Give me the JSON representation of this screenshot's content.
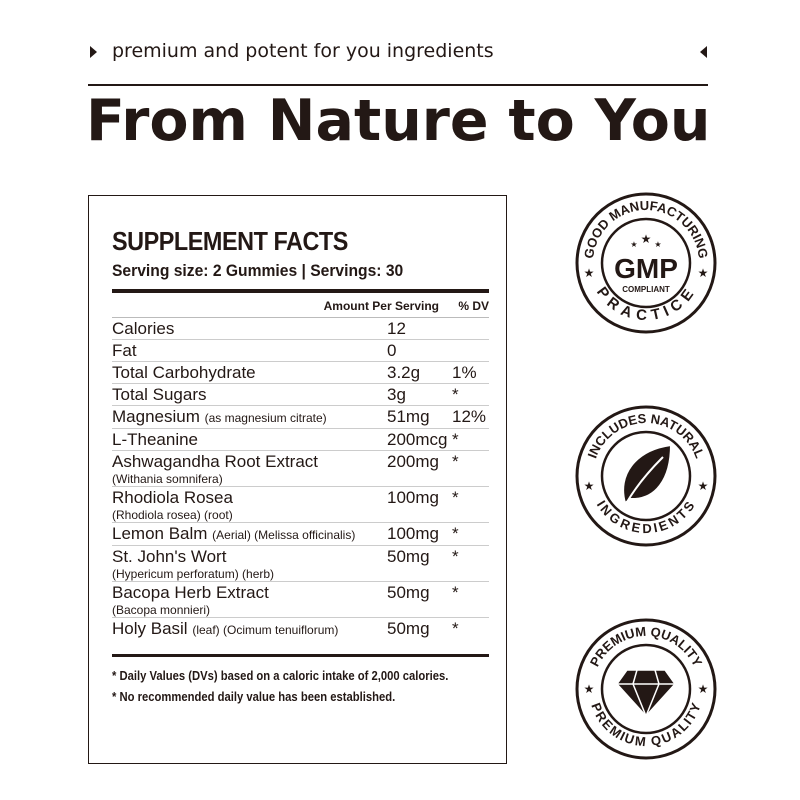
{
  "header": {
    "tagline": "premium and potent for you ingredients",
    "title": "From Nature to You"
  },
  "facts": {
    "title": "SUPPLEMENT FACTS",
    "serving": "Serving size: 2 Gummies  |  Servings: 30",
    "col_amount": "Amount Per Serving",
    "col_dv": "% DV",
    "rows": [
      {
        "name": "Calories",
        "note": "",
        "sub": "",
        "amount": "12",
        "dv": ""
      },
      {
        "name": "Fat",
        "note": "",
        "sub": "",
        "amount": "0",
        "dv": ""
      },
      {
        "name": "Total Carbohydrate",
        "note": "",
        "sub": "",
        "amount": "3.2g",
        "dv": "1%"
      },
      {
        "name": "Total Sugars",
        "note": "",
        "sub": "",
        "amount": "3g",
        "dv": "*"
      },
      {
        "name": "Magnesium",
        "note": "(as magnesium citrate)",
        "sub": "",
        "amount": "51mg",
        "dv": "12%"
      },
      {
        "name": "L-Theanine",
        "note": "",
        "sub": "",
        "amount": "200mcg",
        "dv": "*"
      },
      {
        "name": "Ashwagandha Root Extract",
        "note": "",
        "sub": "(Withania somnifera)",
        "amount": "200mg",
        "dv": "*"
      },
      {
        "name": "Rhodiola Rosea",
        "note": "",
        "sub": "(Rhodiola rosea) (root)",
        "amount": "100mg",
        "dv": "*"
      },
      {
        "name": "Lemon Balm",
        "note": "(Aerial) (Melissa officinalis)",
        "sub": "",
        "amount": "100mg",
        "dv": "*"
      },
      {
        "name": "St. John's Wort",
        "note": "",
        "sub": "(Hypericum perforatum) (herb)",
        "amount": "50mg",
        "dv": "*"
      },
      {
        "name": "Bacopa Herb Extract",
        "note": "",
        "sub": "(Bacopa monnieri)",
        "amount": "50mg",
        "dv": "*"
      },
      {
        "name": "Holy Basil",
        "note": "(leaf) (Ocimum tenuiflorum)",
        "sub": "",
        "amount": "50mg",
        "dv": "*"
      }
    ],
    "footnotes": [
      "* Daily Values (DVs)  based on a caloric intake of 2,000 calories.",
      "* No recommended daily value has been established."
    ]
  },
  "badges": [
    {
      "top": "GOOD MANUFACTURING",
      "bottom": "PRACTICE",
      "center": "GMP",
      "center_sub": "COMPLIANT",
      "icon": "gmp-stars-icon"
    },
    {
      "top": "INCLUDES NATURAL",
      "bottom": "INGREDIENTS",
      "icon": "leaf-icon"
    },
    {
      "top": "PREMIUM QUALITY",
      "bottom": "PREMIUM QUALITY",
      "icon": "diamond-icon"
    }
  ],
  "colors": {
    "ink": "#231815",
    "background": "#ffffff"
  }
}
